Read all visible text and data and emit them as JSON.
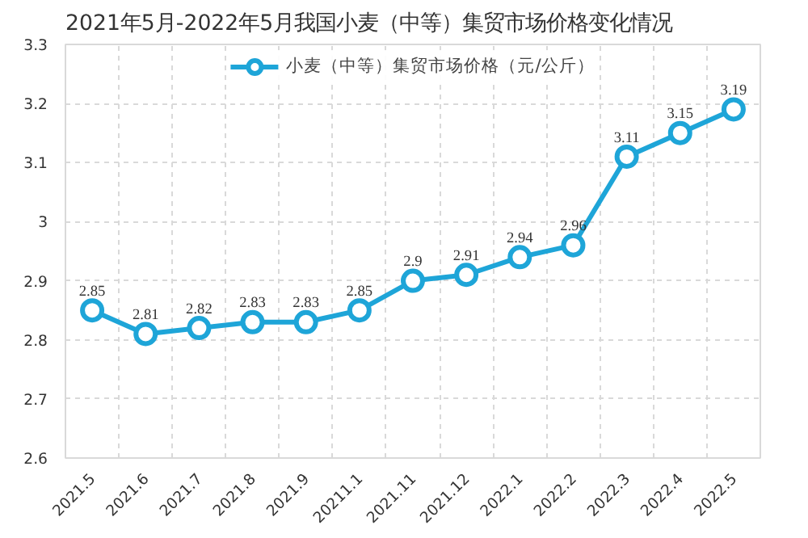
{
  "chart_data": {
    "type": "line",
    "title": "2021年5月-2022年5月我国小麦（中等）集贸市场价格变化情况",
    "categories": [
      "2021.5",
      "2021.6",
      "2021.7",
      "2021.8",
      "2021.9",
      "20211.1",
      "2021.11",
      "2021.12",
      "2022.1",
      "2022.2",
      "2022.3",
      "2022.4",
      "2022.5"
    ],
    "series": [
      {
        "name": "小麦（中等）集贸市场价格（元/公斤）",
        "color": "#1ea5d8",
        "values": [
          2.85,
          2.81,
          2.82,
          2.83,
          2.83,
          2.85,
          2.9,
          2.91,
          2.94,
          2.96,
          3.11,
          3.15,
          3.19
        ]
      }
    ],
    "ylim": [
      2.6,
      3.3
    ],
    "yticks": [
      2.6,
      2.7,
      2.8,
      2.9,
      3,
      3.1,
      3.2,
      3.3
    ],
    "grid": true,
    "legend": "top",
    "marker": "circle",
    "line_style": "solid",
    "data_labels": true
  }
}
